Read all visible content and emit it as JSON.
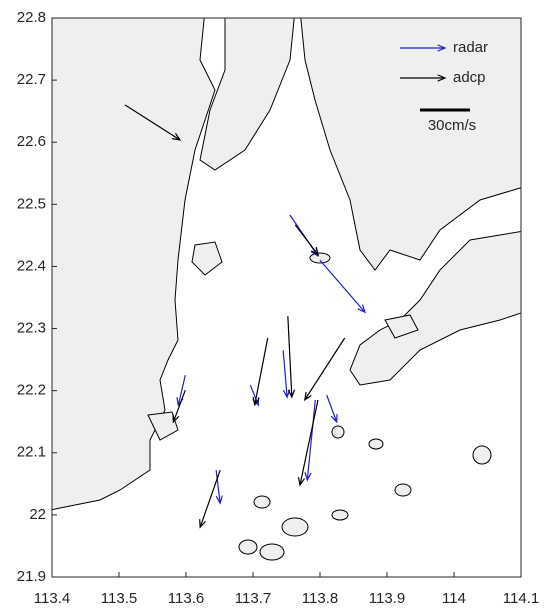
{
  "chart_data": {
    "type": "quiver",
    "xlim": [
      113.4,
      114.1
    ],
    "ylim": [
      21.9,
      22.8
    ],
    "xticks": [
      113.4,
      113.5,
      113.6,
      113.7,
      113.8,
      113.9,
      114,
      114.1
    ],
    "yticks": [
      21.9,
      22,
      22.1,
      22.2,
      22.3,
      22.4,
      22.5,
      22.6,
      22.7,
      22.8
    ],
    "scale": {
      "value": 30,
      "label": "30cm/s"
    },
    "series": [
      {
        "name": "radar",
        "color": "#1f1fcf",
        "x": [
          113.755,
          113.8,
          113.599,
          113.645,
          113.696,
          113.745,
          113.81,
          113.793
        ],
        "y": [
          22.483,
          22.41,
          22.225,
          22.072,
          22.209,
          22.265,
          22.193,
          22.185
        ],
        "u": [
          16.8,
          27,
          -4.2,
          2.4,
          4.8,
          2.4,
          6,
          -4.8
        ],
        "v": [
          -24.6,
          -31.2,
          -18,
          -19.8,
          -12,
          -28.2,
          -16.2,
          -48
        ]
      },
      {
        "name": "adcp",
        "color": "#000000",
        "x": [
          113.509,
          113.763,
          113.722,
          113.752,
          113.837,
          113.651,
          113.599,
          113.797
        ],
        "y": [
          22.66,
          22.467,
          22.285,
          22.32,
          22.285,
          22.072,
          22.201,
          22.185
        ],
        "u": [
          33,
          13.8,
          -7.8,
          2.4,
          -24,
          -12,
          -7.2,
          -10.8
        ],
        "v": [
          -21,
          -18,
          -40.2,
          -48.6,
          -37.2,
          -34.2,
          -19.2,
          -51
        ]
      }
    ]
  }
}
